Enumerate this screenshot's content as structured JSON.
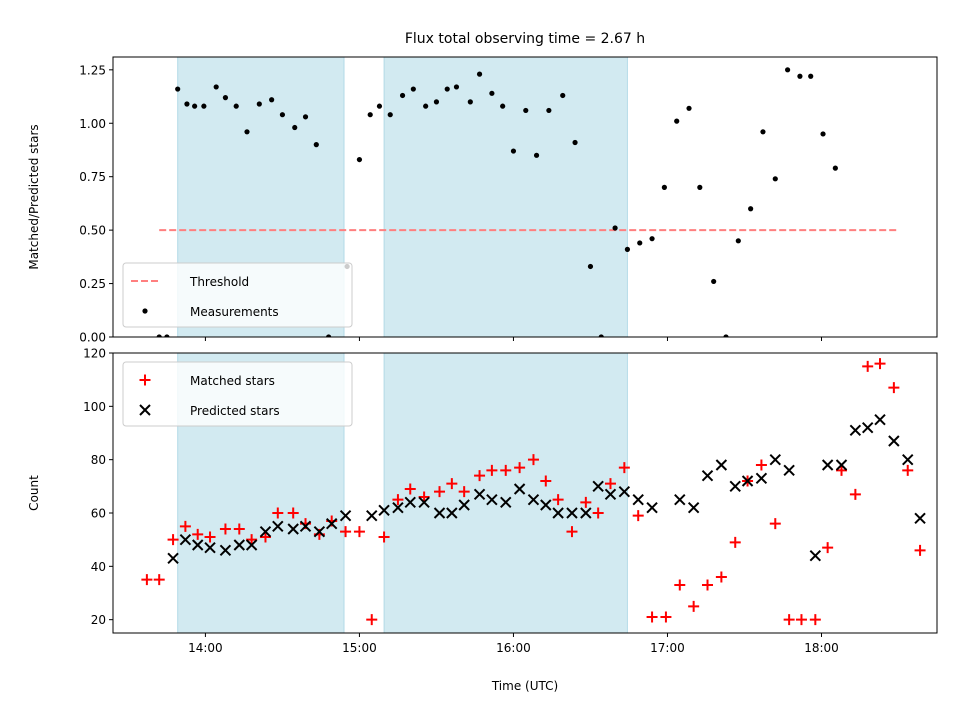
{
  "chart_data": [
    {
      "type": "scatter",
      "title": "Flux total observing time = 2.67 h",
      "ylabel": "Matched/Predicted stars",
      "xlabel": "",
      "xlim": [
        13.4,
        18.75
      ],
      "ylim": [
        0,
        1.31
      ],
      "x_ticks": [
        14,
        15,
        16,
        17,
        18
      ],
      "x_tick_labels": [
        "",
        "",
        "",
        "",
        ""
      ],
      "y_ticks": [
        0,
        0.25,
        0.5,
        0.75,
        1.0,
        1.25
      ],
      "y_tick_labels": [
        "0.00",
        "0.25",
        "0.50",
        "0.75",
        "1.00",
        "1.25"
      ],
      "shaded_intervals": [
        [
          13.82,
          14.9
        ],
        [
          15.16,
          16.74
        ]
      ],
      "shade_color": "#add8e6",
      "threshold": {
        "name": "Threshold",
        "y": 0.5,
        "x_range": [
          13.7,
          18.5
        ],
        "color": "#ff7f7f"
      },
      "legend": {
        "position": "lower left",
        "entries": [
          "Threshold",
          "Measurements"
        ]
      },
      "series": [
        {
          "name": "Measurements",
          "color": "#000000",
          "marker": "dot",
          "points": [
            [
              13.7,
              0.0
            ],
            [
              13.75,
              0.0
            ],
            [
              13.82,
              1.16
            ],
            [
              13.88,
              1.09
            ],
            [
              13.93,
              1.08
            ],
            [
              13.99,
              1.08
            ],
            [
              14.07,
              1.17
            ],
            [
              14.13,
              1.12
            ],
            [
              14.2,
              1.08
            ],
            [
              14.27,
              0.96
            ],
            [
              14.35,
              1.09
            ],
            [
              14.43,
              1.11
            ],
            [
              14.5,
              1.04
            ],
            [
              14.58,
              0.98
            ],
            [
              14.65,
              1.03
            ],
            [
              14.72,
              0.9
            ],
            [
              14.8,
              0.0
            ],
            [
              14.92,
              0.33
            ],
            [
              15.0,
              0.83
            ],
            [
              15.07,
              1.04
            ],
            [
              15.13,
              1.08
            ],
            [
              15.2,
              1.04
            ],
            [
              15.28,
              1.13
            ],
            [
              15.35,
              1.16
            ],
            [
              15.43,
              1.08
            ],
            [
              15.5,
              1.1
            ],
            [
              15.57,
              1.16
            ],
            [
              15.63,
              1.17
            ],
            [
              15.72,
              1.1
            ],
            [
              15.78,
              1.23
            ],
            [
              15.86,
              1.14
            ],
            [
              15.93,
              1.08
            ],
            [
              16.0,
              0.87
            ],
            [
              16.08,
              1.06
            ],
            [
              16.15,
              0.85
            ],
            [
              16.23,
              1.06
            ],
            [
              16.32,
              1.13
            ],
            [
              16.4,
              0.91
            ],
            [
              16.5,
              0.33
            ],
            [
              16.57,
              0.0
            ],
            [
              16.66,
              0.51
            ],
            [
              16.74,
              0.41
            ],
            [
              16.82,
              0.44
            ],
            [
              16.9,
              0.46
            ],
            [
              16.98,
              0.7
            ],
            [
              17.06,
              1.01
            ],
            [
              17.14,
              1.07
            ],
            [
              17.21,
              0.7
            ],
            [
              17.3,
              0.26
            ],
            [
              17.38,
              0.0
            ],
            [
              17.46,
              0.45
            ],
            [
              17.54,
              0.6
            ],
            [
              17.62,
              0.96
            ],
            [
              17.7,
              0.74
            ],
            [
              17.78,
              1.25
            ],
            [
              17.86,
              1.22
            ],
            [
              17.93,
              1.22
            ],
            [
              18.01,
              0.95
            ],
            [
              18.09,
              0.79
            ]
          ]
        }
      ]
    },
    {
      "type": "scatter",
      "title": "",
      "ylabel": "Count",
      "xlabel": "Time (UTC)",
      "xlim": [
        13.4,
        18.75
      ],
      "ylim": [
        15,
        120
      ],
      "x_ticks": [
        14,
        15,
        16,
        17,
        18
      ],
      "x_tick_labels": [
        "14:00",
        "15:00",
        "16:00",
        "17:00",
        "18:00"
      ],
      "y_ticks": [
        20,
        40,
        60,
        80,
        100,
        120
      ],
      "y_tick_labels": [
        "20",
        "40",
        "60",
        "80",
        "100",
        "120"
      ],
      "shaded_intervals": [
        [
          13.82,
          14.9
        ],
        [
          15.16,
          16.74
        ]
      ],
      "shade_color": "#add8e6",
      "legend": {
        "position": "upper left",
        "entries": [
          "Matched stars",
          "Predicted stars"
        ]
      },
      "series": [
        {
          "name": "Matched stars",
          "color": "#ff0000",
          "marker": "plus",
          "points": [
            [
              13.62,
              35
            ],
            [
              13.7,
              35
            ],
            [
              13.79,
              50
            ],
            [
              13.87,
              55
            ],
            [
              13.95,
              52
            ],
            [
              14.03,
              51
            ],
            [
              14.13,
              54
            ],
            [
              14.22,
              54
            ],
            [
              14.3,
              50
            ],
            [
              14.39,
              51
            ],
            [
              14.47,
              60
            ],
            [
              14.57,
              60
            ],
            [
              14.65,
              56
            ],
            [
              14.74,
              52
            ],
            [
              14.82,
              57
            ],
            [
              14.91,
              53
            ],
            [
              15.0,
              53
            ],
            [
              15.08,
              20
            ],
            [
              15.16,
              51
            ],
            [
              15.25,
              65
            ],
            [
              15.33,
              69
            ],
            [
              15.42,
              66
            ],
            [
              15.52,
              68
            ],
            [
              15.6,
              71
            ],
            [
              15.68,
              68
            ],
            [
              15.78,
              74
            ],
            [
              15.86,
              76
            ],
            [
              15.95,
              76
            ],
            [
              16.04,
              77
            ],
            [
              16.13,
              80
            ],
            [
              16.21,
              72
            ],
            [
              16.29,
              65
            ],
            [
              16.38,
              53
            ],
            [
              16.47,
              64
            ],
            [
              16.55,
              60
            ],
            [
              16.63,
              71
            ],
            [
              16.72,
              77
            ],
            [
              16.81,
              59
            ],
            [
              16.9,
              21
            ],
            [
              16.99,
              21
            ],
            [
              17.08,
              33
            ],
            [
              17.17,
              25
            ],
            [
              17.26,
              33
            ],
            [
              17.35,
              36
            ],
            [
              17.44,
              49
            ],
            [
              17.52,
              72
            ],
            [
              17.61,
              78
            ],
            [
              17.7,
              56
            ],
            [
              17.79,
              20
            ],
            [
              17.87,
              20
            ],
            [
              17.96,
              20
            ],
            [
              18.04,
              47
            ],
            [
              18.13,
              76
            ],
            [
              18.22,
              67
            ],
            [
              18.3,
              115
            ],
            [
              18.38,
              116
            ],
            [
              18.47,
              107
            ],
            [
              18.56,
              76
            ],
            [
              18.64,
              46
            ]
          ]
        },
        {
          "name": "Predicted stars",
          "color": "#000000",
          "marker": "x",
          "points": [
            [
              13.79,
              43
            ],
            [
              13.87,
              50
            ],
            [
              13.95,
              48
            ],
            [
              14.03,
              47
            ],
            [
              14.13,
              46
            ],
            [
              14.22,
              48
            ],
            [
              14.3,
              48
            ],
            [
              14.39,
              53
            ],
            [
              14.47,
              55
            ],
            [
              14.57,
              54
            ],
            [
              14.65,
              55
            ],
            [
              14.74,
              53
            ],
            [
              14.82,
              56
            ],
            [
              14.91,
              59
            ],
            [
              15.08,
              59
            ],
            [
              15.16,
              61
            ],
            [
              15.25,
              62
            ],
            [
              15.33,
              64
            ],
            [
              15.42,
              64
            ],
            [
              15.52,
              60
            ],
            [
              15.6,
              60
            ],
            [
              15.68,
              63
            ],
            [
              15.78,
              67
            ],
            [
              15.86,
              65
            ],
            [
              15.95,
              64
            ],
            [
              16.04,
              69
            ],
            [
              16.13,
              65
            ],
            [
              16.21,
              63
            ],
            [
              16.29,
              60
            ],
            [
              16.38,
              60
            ],
            [
              16.47,
              60
            ],
            [
              16.55,
              70
            ],
            [
              16.63,
              67
            ],
            [
              16.72,
              68
            ],
            [
              16.81,
              65
            ],
            [
              16.9,
              62
            ],
            [
              17.08,
              65
            ],
            [
              17.17,
              62
            ],
            [
              17.26,
              74
            ],
            [
              17.35,
              78
            ],
            [
              17.44,
              70
            ],
            [
              17.52,
              72
            ],
            [
              17.61,
              73
            ],
            [
              17.7,
              80
            ],
            [
              17.79,
              76
            ],
            [
              17.96,
              44
            ],
            [
              18.04,
              78
            ],
            [
              18.13,
              78
            ],
            [
              18.22,
              91
            ],
            [
              18.3,
              92
            ],
            [
              18.38,
              95
            ],
            [
              18.47,
              87
            ],
            [
              18.56,
              80
            ],
            [
              18.64,
              58
            ]
          ]
        }
      ]
    }
  ]
}
